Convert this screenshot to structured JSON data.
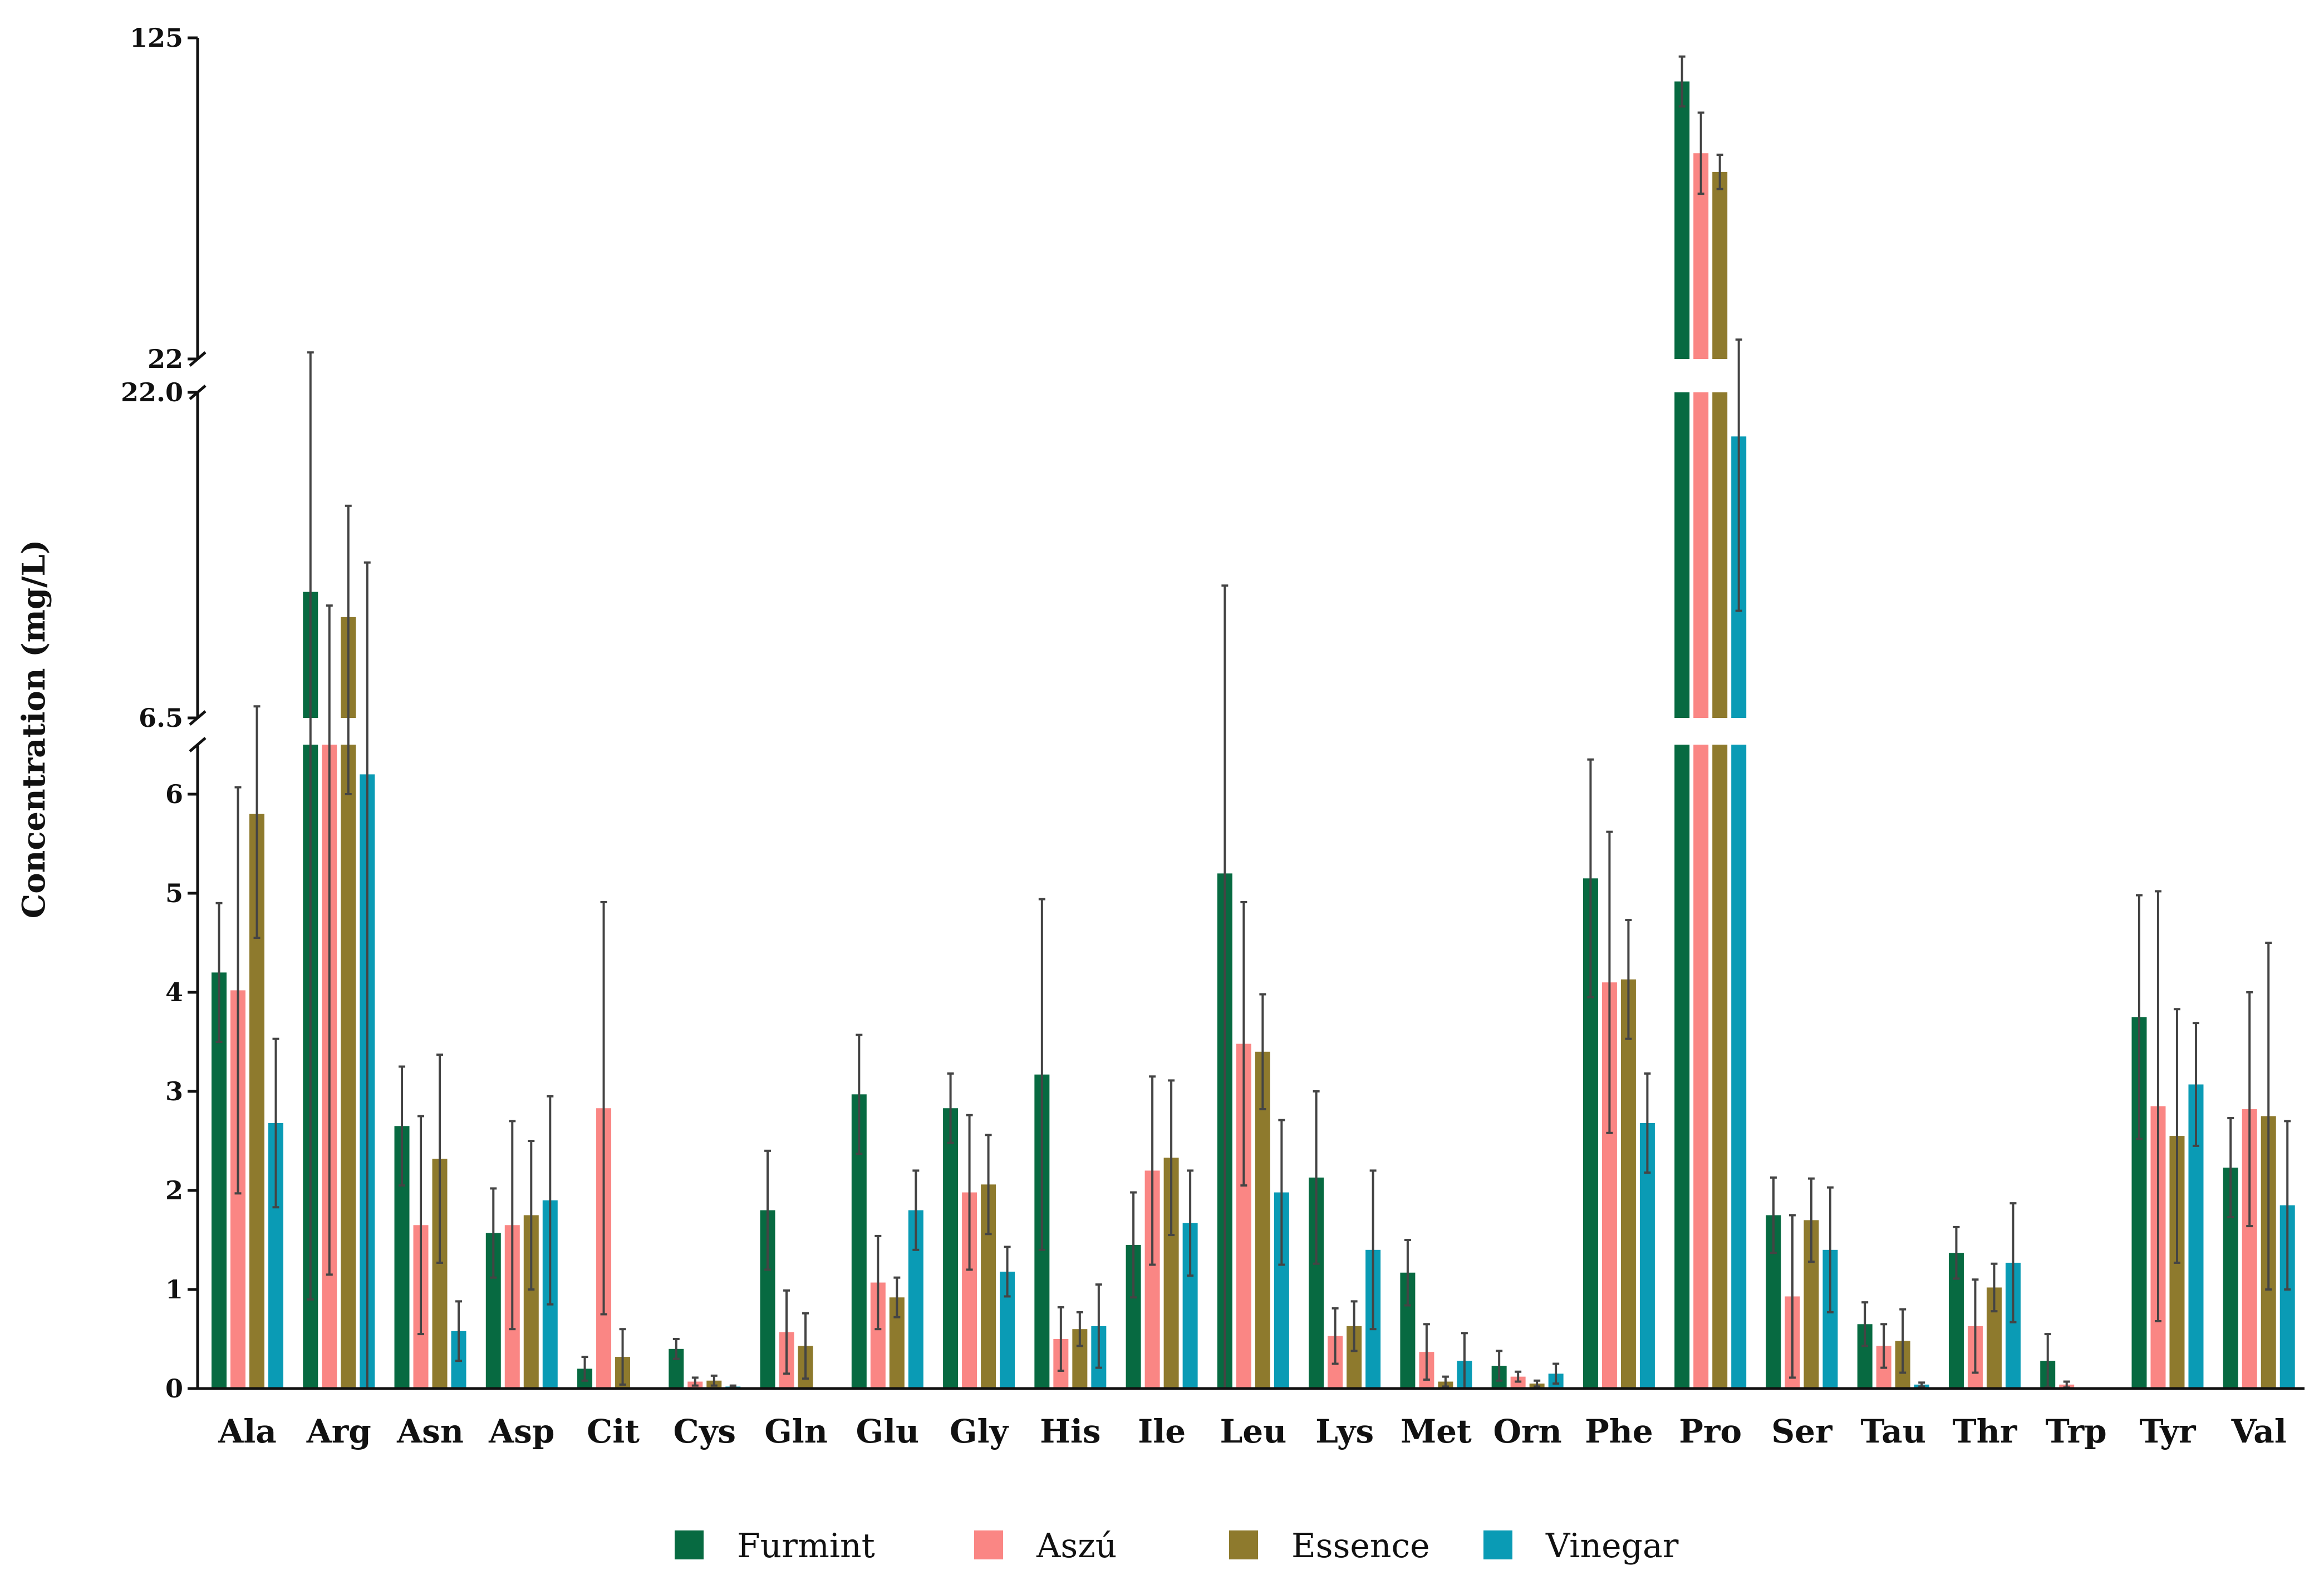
{
  "chart_data": {
    "type": "bar",
    "ylabel": "Concentration (mg/L)",
    "xlabel": "",
    "axis_break": {
      "segments": [
        {
          "ylim": [
            0,
            6.5
          ],
          "ticks": [
            0,
            1,
            2,
            3,
            4,
            5,
            6
          ],
          "tick_labels": [
            "0",
            "1",
            "2",
            "3",
            "4",
            "5",
            "6"
          ]
        },
        {
          "ylim": [
            6.5,
            22.0
          ],
          "ticks": [
            6.5,
            22.0
          ],
          "tick_labels": [
            "6.5",
            "22.0"
          ]
        },
        {
          "ylim": [
            22,
            125
          ],
          "ticks": [
            22,
            125
          ],
          "tick_labels": [
            "22",
            "125"
          ]
        }
      ]
    },
    "categories": [
      "Ala",
      "Arg",
      "Asn",
      "Asp",
      "Cit",
      "Cys",
      "Gln",
      "Glu",
      "Gly",
      "His",
      "Ile",
      "Leu",
      "Lys",
      "Met",
      "Orn",
      "Phe",
      "Pro",
      "Ser",
      "Tau",
      "Thr",
      "Trp",
      "Tyr",
      "Val"
    ],
    "series": [
      {
        "name": "Furmint",
        "color": "#076a41",
        "values": [
          4.2,
          12.5,
          2.65,
          1.57,
          0.2,
          0.4,
          1.8,
          2.97,
          2.83,
          3.17,
          1.45,
          5.2,
          2.13,
          1.17,
          0.23,
          5.15,
          111,
          1.75,
          0.65,
          1.37,
          0.28,
          3.75,
          2.23
        ],
        "errors": [
          0.7,
          11.6,
          0.6,
          0.45,
          0.12,
          0.1,
          0.6,
          0.6,
          0.35,
          1.77,
          0.53,
          7.6,
          0.87,
          0.33,
          0.15,
          1.2,
          8,
          0.38,
          0.22,
          0.26,
          0.27,
          1.23,
          0.5
        ]
      },
      {
        "name": "Aszú",
        "color": "#fa8684",
        "values": [
          4.02,
          6.5,
          1.65,
          1.65,
          2.83,
          0.07,
          0.57,
          1.07,
          1.98,
          0.5,
          2.2,
          3.48,
          0.53,
          0.37,
          0.12,
          4.1,
          88,
          0.93,
          0.43,
          0.63,
          0.04,
          2.85,
          2.82
        ],
        "errors": [
          2.05,
          5.35,
          1.1,
          1.05,
          2.08,
          0.04,
          0.42,
          0.47,
          0.78,
          0.32,
          0.95,
          1.43,
          0.28,
          0.28,
          0.05,
          1.52,
          13,
          0.82,
          0.22,
          0.47,
          0.03,
          2.17,
          1.18
        ]
      },
      {
        "name": "Essence",
        "color": "#8e7a2d",
        "values": [
          5.8,
          11.3,
          2.32,
          1.75,
          0.32,
          0.08,
          0.43,
          0.92,
          2.06,
          0.6,
          2.33,
          3.4,
          0.63,
          0.07,
          0.05,
          4.13,
          82,
          1.7,
          0.48,
          1.02,
          0.0,
          2.55,
          2.75
        ],
        "errors": [
          1.25,
          5.3,
          1.05,
          0.75,
          0.28,
          0.05,
          0.33,
          0.2,
          0.5,
          0.17,
          0.78,
          0.58,
          0.25,
          0.05,
          0.03,
          0.6,
          5.5,
          0.42,
          0.32,
          0.24,
          0.0,
          1.28,
          1.75
        ]
      },
      {
        "name": "Vinegar",
        "color": "#0a9bb5",
        "values": [
          2.68,
          6.2,
          0.58,
          1.9,
          0.0,
          0.02,
          0.0,
          1.8,
          1.18,
          0.63,
          1.67,
          1.98,
          1.4,
          0.28,
          0.15,
          2.68,
          19.9,
          1.4,
          0.04,
          1.27,
          0.0,
          3.07,
          1.85
        ],
        "errors": [
          0.85,
          7.7,
          0.3,
          1.05,
          0.0,
          0.01,
          0.0,
          0.4,
          0.25,
          0.42,
          0.53,
          0.73,
          0.8,
          0.28,
          0.1,
          0.5,
          8.3,
          0.63,
          0.02,
          0.6,
          0.0,
          0.62,
          0.85
        ]
      }
    ],
    "legend": {
      "placement": "bottom-center",
      "entries": [
        "Furmint",
        "Aszú",
        "Essence",
        "Vinegar"
      ]
    }
  }
}
